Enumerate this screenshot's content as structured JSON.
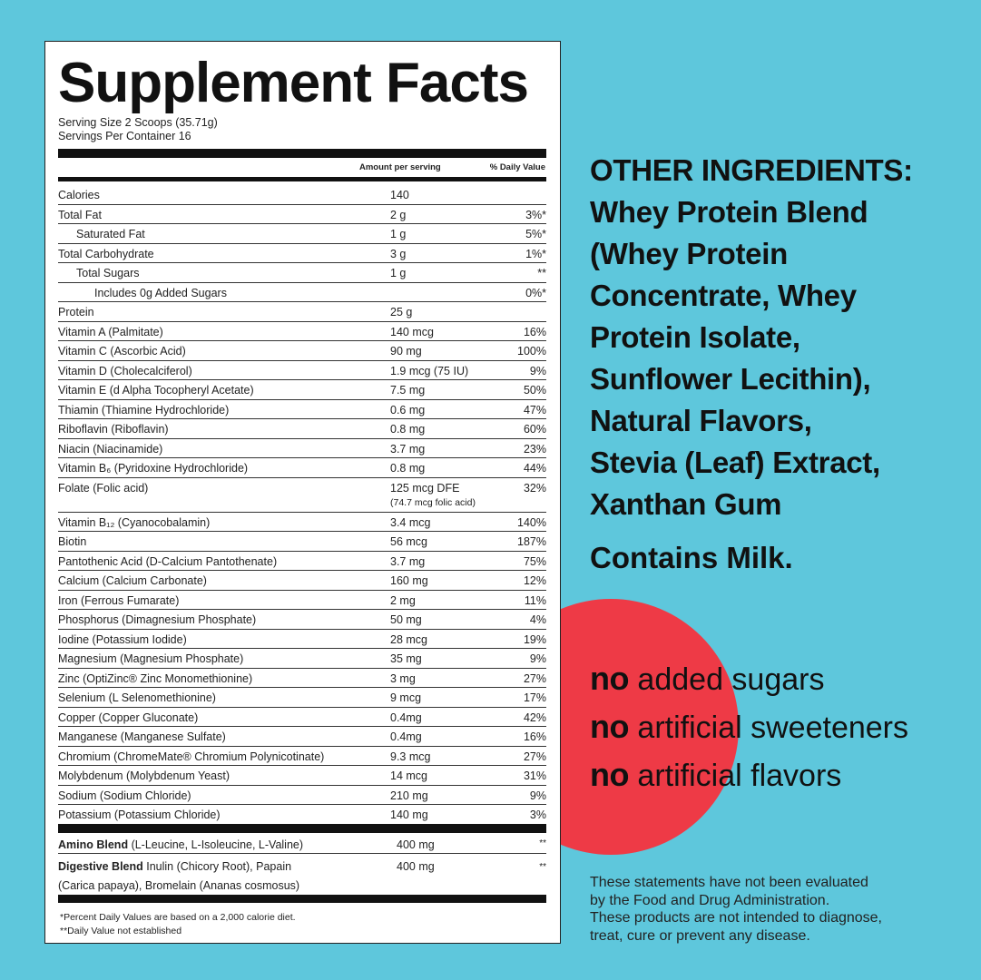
{
  "panel": {
    "title": "Supplement Facts",
    "serving_size": "Serving Size 2 Scoops (35.71g)",
    "servings_per_container": "Servings Per Container 16",
    "col_amount": "Amount per serving",
    "col_dv": "% Daily Value"
  },
  "nutrients": [
    {
      "name": "Calories",
      "amount": "140",
      "dv": ""
    },
    {
      "name": "Total Fat",
      "amount": "2 g",
      "dv": "3%*"
    },
    {
      "name": "Saturated Fat",
      "amount": "1 g",
      "dv": "5%*"
    },
    {
      "name": "Total Carbohydrate",
      "amount": "3 g",
      "dv": "1%*"
    },
    {
      "name": "Total Sugars",
      "amount": "1 g",
      "dv": "**"
    },
    {
      "name": "Includes 0g Added Sugars",
      "amount": "",
      "dv": "0%*"
    },
    {
      "name": "Protein",
      "amount": "25 g",
      "dv": ""
    },
    {
      "name": "Vitamin A (Palmitate)",
      "amount": "140 mcg",
      "dv": "16%"
    },
    {
      "name": "Vitamin C (Ascorbic Acid)",
      "amount": "90 mg",
      "dv": "100%"
    },
    {
      "name": "Vitamin D (Cholecalciferol)",
      "amount": "1.9 mcg (75 IU)",
      "dv": "9%"
    },
    {
      "name": "Vitamin E (d Alpha Tocopheryl Acetate)",
      "amount": "7.5 mg",
      "dv": "50%"
    },
    {
      "name": "Thiamin (Thiamine Hydrochloride)",
      "amount": "0.6 mg",
      "dv": "47%"
    },
    {
      "name": "Riboflavin (Riboflavin)",
      "amount": "0.8 mg",
      "dv": "60%"
    },
    {
      "name": "Niacin (Niacinamide)",
      "amount": "3.7 mg",
      "dv": "23%"
    },
    {
      "name": "Vitamin B₆ (Pyridoxine Hydrochloride)",
      "amount": "0.8 mg",
      "dv": "44%"
    },
    {
      "name": "Folate (Folic acid)",
      "amount": "125 mcg DFE",
      "sub": "(74.7 mcg folic acid)",
      "dv": "32%"
    },
    {
      "name": "Vitamin B₁₂ (Cyanocobalamin)",
      "amount": "3.4 mcg",
      "dv": "140%"
    },
    {
      "name": "Biotin",
      "amount": "56 mcg",
      "dv": "187%"
    },
    {
      "name": "Pantothenic Acid (D-Calcium Pantothenate)",
      "amount": "3.7 mg",
      "dv": "75%"
    },
    {
      "name": "Calcium (Calcium Carbonate)",
      "amount": "160 mg",
      "dv": "12%"
    },
    {
      "name": "Iron (Ferrous Fumarate)",
      "amount": "2 mg",
      "dv": "11%"
    },
    {
      "name": "Phosphorus (Dimagnesium Phosphate)",
      "amount": "50 mg",
      "dv": "4%"
    },
    {
      "name": "Iodine (Potassium Iodide)",
      "amount": "28 mcg",
      "dv": "19%"
    },
    {
      "name": "Magnesium (Magnesium Phosphate)",
      "amount": "35 mg",
      "dv": "9%"
    },
    {
      "name": "Zinc (OptiZinc® Zinc Monomethionine)",
      "amount": "3 mg",
      "dv": "27%"
    },
    {
      "name": "Selenium (L Selenomethionine)",
      "amount": "9 mcg",
      "dv": "17%"
    },
    {
      "name": "Copper (Copper Gluconate)",
      "amount": "0.4mg",
      "dv": "42%"
    },
    {
      "name": "Manganese (Manganese Sulfate)",
      "amount": "0.4mg",
      "dv": "16%"
    },
    {
      "name": "Chromium (ChromeMate® Chromium Polynicotinate)",
      "amount": "9.3 mcg",
      "dv": "27%"
    },
    {
      "name": "Molybdenum (Molybdenum Yeast)",
      "amount": "14 mcg",
      "dv": "31%"
    },
    {
      "name": "Sodium (Sodium Chloride)",
      "amount": "210 mg",
      "dv": "9%"
    },
    {
      "name": "Potassium (Potassium Chloride)",
      "amount": "140 mg",
      "dv": "3%"
    }
  ],
  "blends": {
    "amino_label": "Amino Blend",
    "amino_desc": " (L-Leucine, L-Isoleucine, L-Valine)",
    "amino_amount": "400 mg",
    "amino_dv": "**",
    "digestive_label": "Digestive Blend",
    "digestive_desc": " Inulin (Chicory Root), Papain",
    "digestive_desc2": "(Carica papaya), Bromelain (Ananas cosmosus)",
    "digestive_amount": "400 mg",
    "digestive_dv": "**"
  },
  "footnotes": {
    "line1": "*Percent Daily Values are based on a 2,000 calorie diet.",
    "line2": "**Daily Value not established"
  },
  "other_ingredients": {
    "heading": "OTHER INGREDIENTS:",
    "lines": [
      "Whey Protein Blend",
      "(Whey Protein",
      "Concentrate, Whey",
      "Protein Isolate,",
      "Sunflower Lecithin),",
      "Natural Flavors,",
      "Stevia (Leaf) Extract,",
      "Xanthan Gum"
    ]
  },
  "allergen": "Contains Milk.",
  "claims": [
    {
      "no": "no",
      "text": " added sugars"
    },
    {
      "no": "no",
      "text": " artificial sweeteners"
    },
    {
      "no": "no",
      "text": " artificial flavors"
    }
  ],
  "disclaimer": [
    "These statements have not been evaluated",
    "by the Food and Drug Administration.",
    "These products are not intended to diagnose,",
    "treat, cure or prevent any disease."
  ],
  "colors": {
    "background": "#5ec7dc",
    "accent_circle": "#ee3a46",
    "panel": "#ffffff",
    "text": "#111111"
  }
}
